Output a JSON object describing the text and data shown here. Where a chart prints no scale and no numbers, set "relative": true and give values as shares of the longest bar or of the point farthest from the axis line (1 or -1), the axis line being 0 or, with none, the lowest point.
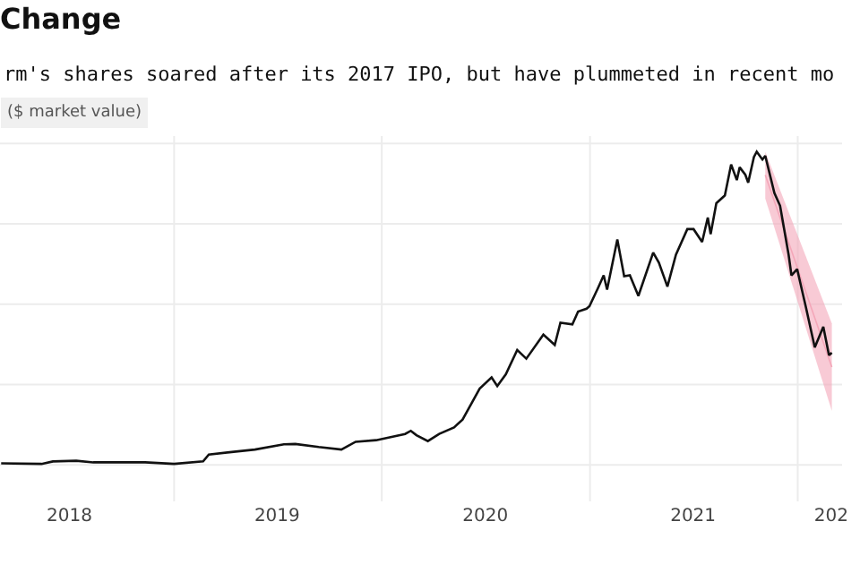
{
  "chart_data": {
    "type": "line",
    "title": "Change",
    "subtitle": "rm's shares soared after its 2017 IPO, but have plummeted in recent mo",
    "ylabel": "($ market value)",
    "relative": true,
    "grid": true,
    "xlim": [
      "2018-03-01",
      "2022-03-20"
    ],
    "xticks": [
      {
        "value": "2018-07-01",
        "label": "2018"
      },
      {
        "value": "2019-01-01",
        "label": null
      },
      {
        "value": "2019-07-01",
        "label": "2019"
      },
      {
        "value": "2020-01-01",
        "label": null
      },
      {
        "value": "2020-07-01",
        "label": "2020"
      },
      {
        "value": "2021-01-01",
        "label": null
      },
      {
        "value": "2021-07-01",
        "label": "2021"
      },
      {
        "value": "2022-01-01",
        "label": null
      },
      {
        "value": "2022-03-01",
        "label": "202"
      }
    ],
    "series": [
      {
        "color": "#f4a7b9",
        "x": [
          "2021-11-05",
          "2022-03-02"
        ],
        "values": [
          0.925,
          0.31
        ],
        "lower": [
          0.85,
          0.17
        ],
        "upper": [
          1.0,
          0.45
        ]
      },
      {
        "color": "#111111",
        "x": [
          "2018-03-03",
          "2018-05-13",
          "2018-06-02",
          "2018-07-13",
          "2018-08-12",
          "2018-11-11",
          "2019-01-01",
          "2019-02-21",
          "2019-03-03",
          "2019-04-12",
          "2019-05-23",
          "2019-07-13",
          "2019-08-02",
          "2019-09-12",
          "2019-10-22",
          "2019-11-16",
          "2019-12-22",
          "2020-02-11",
          "2020-02-21",
          "2020-03-02",
          "2020-03-22",
          "2020-04-11",
          "2020-05-07",
          "2020-05-22",
          "2020-06-11",
          "2020-06-21",
          "2020-07-12",
          "2020-07-22",
          "2020-08-06",
          "2020-08-26",
          "2020-09-11",
          "2020-10-11",
          "2020-10-31",
          "2020-11-10",
          "2020-12-01",
          "2020-12-11",
          "2020-12-26",
          "2020-12-31",
          "2021-01-15",
          "2021-01-25",
          "2021-01-31",
          "2021-02-18",
          "2021-03-02",
          "2021-03-12",
          "2021-03-27",
          "2021-04-22",
          "2021-05-02",
          "2021-05-17",
          "2021-06-01",
          "2021-06-21",
          "2021-07-02",
          "2021-07-17",
          "2021-07-27",
          "2021-08-01",
          "2021-08-11",
          "2021-08-26",
          "2021-09-06",
          "2021-09-16",
          "2021-09-21",
          "2021-10-01",
          "2021-10-06",
          "2021-10-16",
          "2021-10-21",
          "2021-10-31",
          "2021-11-05",
          "2021-11-21",
          "2021-12-01",
          "2021-12-16",
          "2021-12-21",
          "2021-12-31",
          "2022-01-15",
          "2022-01-31",
          "2022-02-15",
          "2022-02-25",
          "2022-03-02"
        ],
        "values": [
          0.002,
          0,
          0.008,
          0.01,
          0.005,
          0.005,
          0,
          0.008,
          0.03,
          0.038,
          0.046,
          0.063,
          0.064,
          0.054,
          0.046,
          0.071,
          0.076,
          0.096,
          0.106,
          0.092,
          0.073,
          0.096,
          0.117,
          0.142,
          0.208,
          0.241,
          0.277,
          0.249,
          0.287,
          0.365,
          0.337,
          0.414,
          0.381,
          0.452,
          0.447,
          0.488,
          0.497,
          0.505,
          0.563,
          0.604,
          0.558,
          0.719,
          0.601,
          0.604,
          0.538,
          0.677,
          0.645,
          0.568,
          0.67,
          0.752,
          0.752,
          0.711,
          0.789,
          0.736,
          0.835,
          0.86,
          0.959,
          0.909,
          0.95,
          0.926,
          0.901,
          0.983,
          1,
          0.975,
          0.987,
          0.868,
          0.827,
          0.67,
          0.604,
          0.624,
          0.505,
          0.373,
          0.439,
          0.348,
          0.356
        ]
      }
    ]
  }
}
